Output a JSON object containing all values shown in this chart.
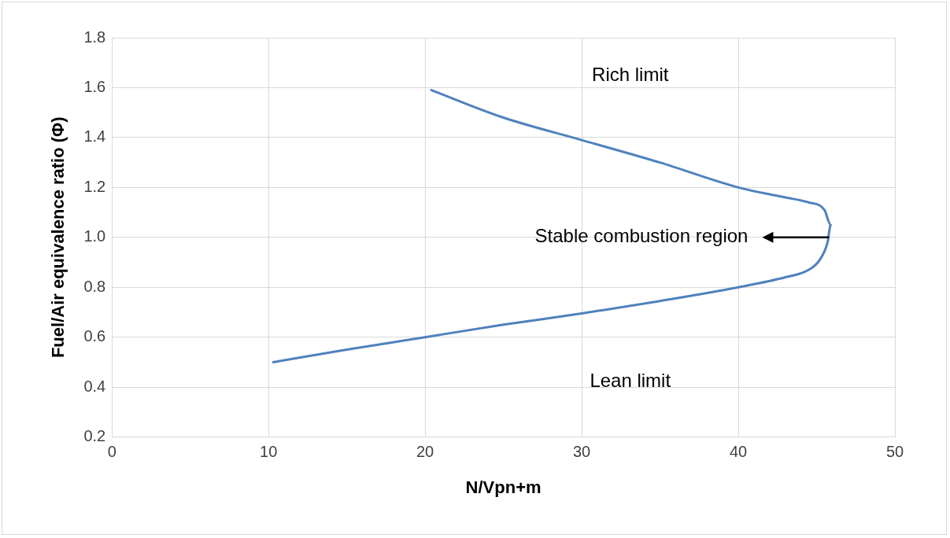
{
  "chart_data": {
    "type": "line",
    "xlabel": "N/Vpn+m",
    "ylabel": "Fuel/Air equivalence ratio (Φ)",
    "x": [
      20.4,
      25,
      30,
      35,
      40,
      43,
      44.5,
      45.5,
      45.9,
      45.7,
      45.2,
      44.5,
      43,
      40,
      35,
      30,
      25,
      20,
      15,
      10.3
    ],
    "series": [
      {
        "color": "#4f81bd",
        "values": [
          1.59,
          1.48,
          1.39,
          1.3,
          1.2,
          1.16,
          1.14,
          1.11,
          1.05,
          0.98,
          0.91,
          0.87,
          0.84,
          0.8,
          0.745,
          0.695,
          0.65,
          0.6,
          0.55,
          0.5
        ]
      }
    ],
    "xlim": [
      0,
      50
    ],
    "xticks": [
      0,
      10,
      20,
      30,
      40,
      50
    ],
    "ylim": [
      0.2,
      1.8
    ],
    "yticks": [
      {
        "value": 0.2,
        "label": "0.2"
      },
      {
        "value": 0.4,
        "label": "0.4"
      },
      {
        "value": 0.6,
        "label": "0.6"
      },
      {
        "value": 0.8,
        "label": "0.8"
      },
      {
        "value": 1.0,
        "label": "1.0"
      },
      {
        "value": 1.2,
        "label": "1.2"
      },
      {
        "value": 1.4,
        "label": "1.4"
      },
      {
        "value": 1.6,
        "label": "1.6"
      },
      {
        "value": 1.8,
        "label": "1.8"
      }
    ],
    "grid": true,
    "legend": false,
    "marker": "none",
    "line_style": "solid",
    "annotations": [
      "Rich limit",
      "Lean limit",
      {
        "text": "Stable combustion region",
        "x": 45.8,
        "y": 1.0
      }
    ]
  }
}
